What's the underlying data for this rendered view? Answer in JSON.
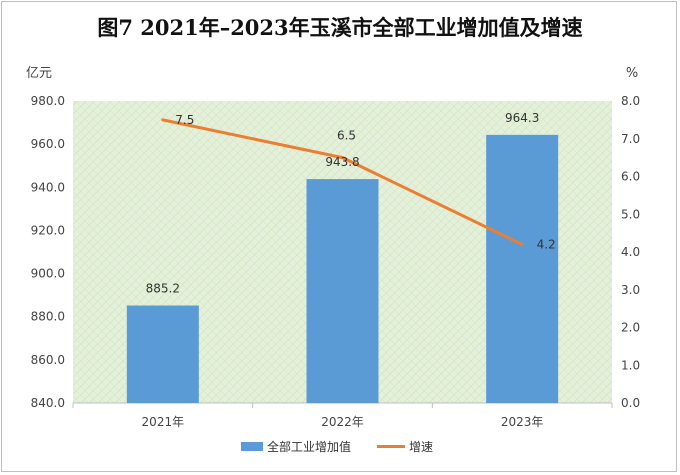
{
  "chart_data": {
    "type": "bar+line",
    "title": "图7  2021年–2023年玉溪市全部工业增加值及增速",
    "categories": [
      "2021年",
      "2022年",
      "2023年"
    ],
    "series": [
      {
        "name": "全部工业增加值",
        "type": "bar",
        "axis": "left",
        "values": [
          885.2,
          943.8,
          964.3
        ],
        "labels": [
          "885.2",
          "943.8",
          "964.3"
        ],
        "color": "#5b9bd5"
      },
      {
        "name": "增速",
        "type": "line",
        "axis": "right",
        "values": [
          7.5,
          6.5,
          4.2
        ],
        "labels": [
          "7.5",
          "6.5",
          "4.2"
        ],
        "color": "#ed7d31"
      }
    ],
    "y_left": {
      "unit": "亿元",
      "min": 840,
      "max": 980,
      "step": 20,
      "tick_labels": [
        "840.0",
        "860.0",
        "880.0",
        "900.0",
        "920.0",
        "940.0",
        "960.0",
        "980.0"
      ]
    },
    "y_right": {
      "unit": "%",
      "min": 0,
      "max": 8,
      "step": 1,
      "tick_labels": [
        "0.0",
        "1.0",
        "2.0",
        "3.0",
        "4.0",
        "5.0",
        "6.0",
        "7.0",
        "8.0"
      ]
    },
    "legend_position": "bottom",
    "plot_background": "#e2efd9"
  }
}
